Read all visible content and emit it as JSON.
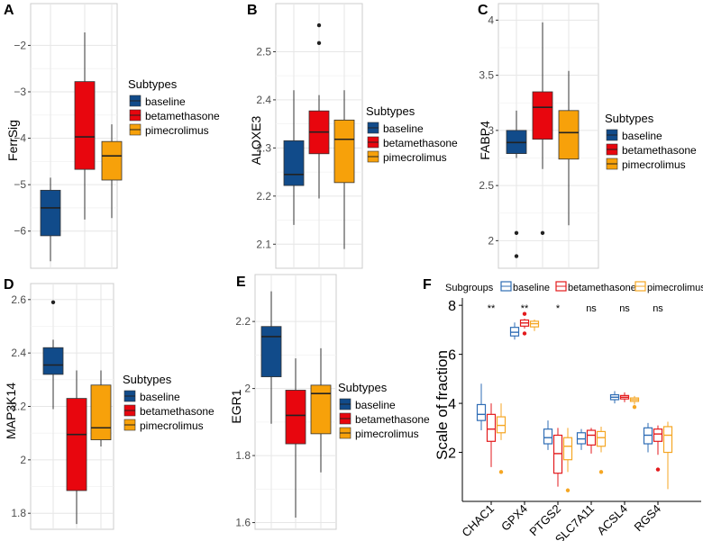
{
  "chart_data": [
    {
      "panel": "A",
      "type": "boxplot",
      "ylabel": "FerrSig",
      "ylim": [
        -6.8,
        -1.1
      ],
      "yticks": [
        -6,
        -5,
        -4,
        -3,
        -2
      ],
      "legend_title": "Subtypes",
      "groups": [
        {
          "name": "baseline",
          "color": "#114b8a",
          "min": -6.65,
          "q1": -6.1,
          "median": -5.5,
          "q3": -5.12,
          "max": -4.85,
          "outliers": []
        },
        {
          "name": "betamethasone",
          "color": "#e8060e",
          "min": -5.75,
          "q1": -4.67,
          "median": -3.97,
          "q3": -2.78,
          "max": -1.72,
          "outliers": []
        },
        {
          "name": "pimecrolimus",
          "color": "#f7a10a",
          "min": -5.72,
          "q1": -4.9,
          "median": -4.38,
          "q3": -4.07,
          "max": -3.7,
          "outliers": []
        }
      ]
    },
    {
      "panel": "B",
      "type": "boxplot",
      "ylabel": "ALOXE3",
      "ylim": [
        2.05,
        2.6
      ],
      "yticks": [
        2.1,
        2.2,
        2.3,
        2.4,
        2.5
      ],
      "legend_title": "Subtypes",
      "groups": [
        {
          "name": "baseline",
          "color": "#114b8a",
          "min": 2.14,
          "q1": 2.222,
          "median": 2.245,
          "q3": 2.315,
          "max": 2.42,
          "outliers": []
        },
        {
          "name": "betamethasone",
          "color": "#e8060e",
          "min": 2.195,
          "q1": 2.288,
          "median": 2.333,
          "q3": 2.377,
          "max": 2.41,
          "outliers": [
            2.518,
            2.555
          ]
        },
        {
          "name": "pimecrolimus",
          "color": "#f7a10a",
          "min": 2.09,
          "q1": 2.228,
          "median": 2.318,
          "q3": 2.358,
          "max": 2.42,
          "outliers": []
        }
      ]
    },
    {
      "panel": "C",
      "type": "boxplot",
      "ylabel": "FABP4",
      "ylim": [
        1.75,
        4.15
      ],
      "yticks": [
        2.0,
        2.5,
        3.0,
        3.5,
        4.0
      ],
      "legend_title": "Subtypes",
      "groups": [
        {
          "name": "baseline",
          "color": "#114b8a",
          "min": 2.75,
          "q1": 2.79,
          "median": 2.89,
          "q3": 3.0,
          "max": 3.18,
          "outliers": [
            2.07,
            1.86
          ]
        },
        {
          "name": "betamethasone",
          "color": "#e8060e",
          "min": 2.65,
          "q1": 2.92,
          "median": 3.21,
          "q3": 3.35,
          "max": 3.98,
          "outliers": [
            2.07
          ]
        },
        {
          "name": "pimecrolimus",
          "color": "#f7a10a",
          "min": 2.14,
          "q1": 2.74,
          "median": 2.98,
          "q3": 3.18,
          "max": 3.54,
          "outliers": []
        }
      ]
    },
    {
      "panel": "D",
      "type": "boxplot",
      "ylabel": "MAP3K14",
      "ylim": [
        1.74,
        2.66
      ],
      "yticks": [
        1.8,
        2.0,
        2.2,
        2.4,
        2.6
      ],
      "legend_title": "Subtypes",
      "groups": [
        {
          "name": "baseline",
          "color": "#114b8a",
          "min": 2.19,
          "q1": 2.32,
          "median": 2.355,
          "q3": 2.42,
          "max": 2.45,
          "outliers": [
            2.59
          ]
        },
        {
          "name": "betamethasone",
          "color": "#e8060e",
          "min": 1.76,
          "q1": 1.885,
          "median": 2.095,
          "q3": 2.23,
          "max": 2.335,
          "outliers": []
        },
        {
          "name": "pimecrolimus",
          "color": "#f7a10a",
          "min": 2.05,
          "q1": 2.075,
          "median": 2.12,
          "q3": 2.28,
          "max": 2.335,
          "outliers": []
        }
      ]
    },
    {
      "panel": "E",
      "type": "boxplot",
      "ylabel": "EGR1",
      "ylim": [
        1.58,
        2.34
      ],
      "yticks": [
        1.6,
        1.8,
        2.0,
        2.2
      ],
      "legend_title": "Subtypes",
      "groups": [
        {
          "name": "baseline",
          "color": "#114b8a",
          "min": 1.895,
          "q1": 2.035,
          "median": 2.155,
          "q3": 2.185,
          "max": 2.29,
          "outliers": []
        },
        {
          "name": "betamethasone",
          "color": "#e8060e",
          "min": 1.615,
          "q1": 1.835,
          "median": 1.92,
          "q3": 1.995,
          "max": 2.09,
          "outliers": []
        },
        {
          "name": "pimecrolimus",
          "color": "#f7a10a",
          "min": 1.75,
          "q1": 1.865,
          "median": 1.985,
          "q3": 2.01,
          "max": 2.12,
          "outliers": []
        }
      ]
    },
    {
      "panel": "F",
      "type": "grouped_boxplot",
      "ylabel": "Scale of fraction",
      "ylim": [
        0,
        8.3
      ],
      "yticks": [
        2,
        4,
        6,
        8
      ],
      "legend_title": "Subgroups",
      "series": [
        {
          "name": "baseline",
          "color": "#2f6db5"
        },
        {
          "name": "betamethasone",
          "color": "#e31a1c"
        },
        {
          "name": "pimecrolimus",
          "color": "#f5a623"
        }
      ],
      "categories": [
        {
          "name": "CHAC1",
          "sig": "**",
          "boxes": [
            {
              "min": 2.9,
              "q1": 3.3,
              "median": 3.55,
              "q3": 3.95,
              "max": 4.8,
              "outliers": []
            },
            {
              "min": 1.4,
              "q1": 2.45,
              "median": 2.95,
              "q3": 3.55,
              "max": 4.0,
              "outliers": []
            },
            {
              "min": 2.5,
              "q1": 2.8,
              "median": 3.1,
              "q3": 3.45,
              "max": 4.0,
              "outliers": [
                1.2
              ]
            }
          ]
        },
        {
          "name": "GPX4",
          "sig": "**",
          "boxes": [
            {
              "min": 6.6,
              "q1": 6.75,
              "median": 6.9,
              "q3": 7.1,
              "max": 7.3,
              "outliers": []
            },
            {
              "min": 7.05,
              "q1": 7.15,
              "median": 7.28,
              "q3": 7.4,
              "max": 7.45,
              "outliers": [
                6.85,
                7.65
              ]
            },
            {
              "min": 6.95,
              "q1": 7.12,
              "median": 7.25,
              "q3": 7.35,
              "max": 7.42,
              "outliers": []
            }
          ]
        },
        {
          "name": "PTGS2",
          "sig": "*",
          "boxes": [
            {
              "min": 2.1,
              "q1": 2.35,
              "median": 2.6,
              "q3": 2.95,
              "max": 3.3,
              "outliers": []
            },
            {
              "min": 0.6,
              "q1": 1.15,
              "median": 1.95,
              "q3": 2.7,
              "max": 3.0,
              "outliers": []
            },
            {
              "min": 1.2,
              "q1": 1.7,
              "median": 2.25,
              "q3": 2.6,
              "max": 3.0,
              "outliers": [
                0.45
              ]
            }
          ]
        },
        {
          "name": "SLC7A11",
          "sig": "ns",
          "boxes": [
            {
              "min": 2.1,
              "q1": 2.35,
              "median": 2.55,
              "q3": 2.8,
              "max": 2.95,
              "outliers": []
            },
            {
              "min": 1.95,
              "q1": 2.3,
              "median": 2.7,
              "q3": 2.9,
              "max": 3.0,
              "outliers": []
            },
            {
              "min": 2.0,
              "q1": 2.25,
              "median": 2.6,
              "q3": 2.85,
              "max": 3.05,
              "outliers": [
                1.2
              ]
            }
          ]
        },
        {
          "name": "ACSL4",
          "sig": "ns",
          "boxes": [
            {
              "min": 4.0,
              "q1": 4.15,
              "median": 4.25,
              "q3": 4.35,
              "max": 4.5,
              "outliers": []
            },
            {
              "min": 4.05,
              "q1": 4.18,
              "median": 4.25,
              "q3": 4.32,
              "max": 4.45,
              "outliers": []
            },
            {
              "min": 3.95,
              "q1": 4.08,
              "median": 4.15,
              "q3": 4.22,
              "max": 4.3,
              "outliers": [
                3.85
              ]
            }
          ]
        },
        {
          "name": "RGS4",
          "sig": "ns",
          "boxes": [
            {
              "min": 2.0,
              "q1": 2.35,
              "median": 2.7,
              "q3": 3.0,
              "max": 3.2,
              "outliers": []
            },
            {
              "min": 1.9,
              "q1": 2.45,
              "median": 2.75,
              "q3": 2.95,
              "max": 3.1,
              "outliers": [
                1.3
              ]
            },
            {
              "min": 0.5,
              "q1": 2.0,
              "median": 2.7,
              "q3": 3.05,
              "max": 3.25,
              "outliers": []
            }
          ]
        }
      ]
    }
  ]
}
